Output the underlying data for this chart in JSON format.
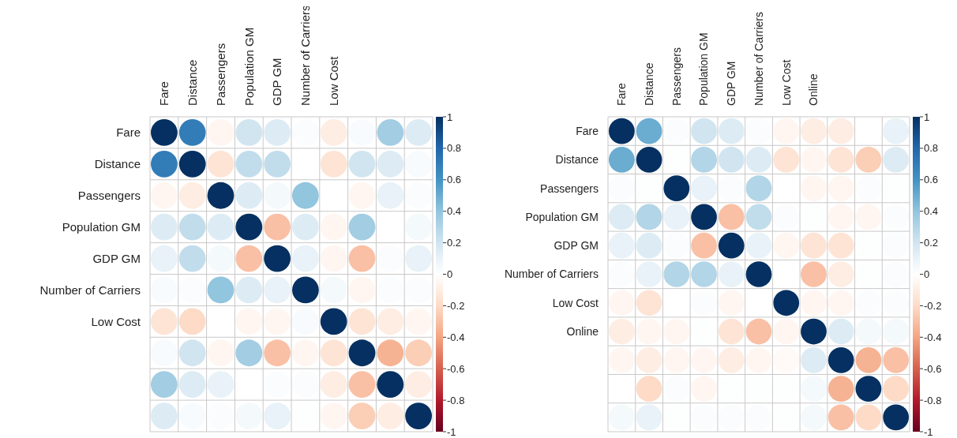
{
  "chart_data": [
    {
      "type": "heatmap",
      "grid": true,
      "clim": [
        -1,
        1
      ],
      "cticks": [
        -1,
        -0.8,
        -0.6,
        -0.4,
        -0.2,
        0,
        0.2,
        0.4,
        0.6,
        0.8,
        1
      ],
      "categories": [
        "Fare",
        "Distance",
        "Passengers",
        "Population GM",
        "GDP GM",
        "Number of Carriers",
        "Low Cost",
        null,
        null,
        null
      ],
      "y_categories": [
        "Fare",
        "Distance",
        "Passengers",
        "Population GM",
        "GDP GM",
        "Number of Carriers",
        "Low Cost",
        null,
        null,
        null
      ],
      "cells": [
        [
          1,
          0.7,
          -0.05,
          0.2,
          0.15,
          0.02,
          -0.1,
          0.03,
          0.35,
          0.15
        ],
        [
          0.7,
          1,
          -0.15,
          0.25,
          0.25,
          0,
          -0.15,
          0.2,
          0.15,
          0.03
        ],
        [
          -0.05,
          -0.1,
          1,
          0.15,
          0.05,
          0.4,
          0,
          -0.05,
          0.1,
          0.02
        ],
        [
          0.15,
          0.25,
          0.15,
          1,
          -0.3,
          0.15,
          -0.05,
          0.35,
          0,
          0.05
        ],
        [
          0.1,
          0.25,
          0.05,
          -0.3,
          1,
          0.1,
          -0.05,
          -0.3,
          0.02,
          0.1
        ],
        [
          0.03,
          0.02,
          0.4,
          0.15,
          0.1,
          1,
          0.05,
          -0.05,
          0.02,
          0.02
        ],
        [
          -0.15,
          -0.2,
          0,
          -0.05,
          -0.05,
          0.03,
          1,
          -0.15,
          -0.1,
          -0.05
        ],
        [
          0.03,
          0.2,
          -0.05,
          0.35,
          -0.3,
          -0.05,
          -0.15,
          1,
          -0.35,
          -0.25
        ],
        [
          0.35,
          0.15,
          0.1,
          0,
          0.02,
          0.02,
          -0.1,
          -0.3,
          1,
          -0.1
        ],
        [
          0.15,
          0.03,
          0.02,
          0.05,
          0.1,
          0.01,
          -0.05,
          -0.25,
          -0.1,
          1
        ]
      ]
    },
    {
      "type": "heatmap",
      "grid": true,
      "clim": [
        -1,
        1
      ],
      "cticks": [
        -1,
        -0.8,
        -0.6,
        -0.4,
        -0.2,
        0,
        0.2,
        0.4,
        0.6,
        0.8,
        1
      ],
      "categories": [
        "Fare",
        "Distance",
        "Passengers",
        "Population GM",
        "GDP GM",
        "Number of Carriers",
        "Low Cost",
        "Online",
        null,
        null,
        null
      ],
      "y_categories": [
        "Fare",
        "Distance",
        "Passengers",
        "Population GM",
        "GDP GM",
        "Number of Carriers",
        "Low Cost",
        "Online",
        null,
        null,
        null
      ],
      "cells": [
        [
          1,
          0.5,
          0.02,
          0.2,
          0.15,
          0.02,
          -0.05,
          -0.1,
          -0.1,
          0,
          0.1
        ],
        [
          0.5,
          1,
          0.01,
          0.3,
          0.2,
          0.15,
          -0.15,
          -0.05,
          -0.15,
          -0.25,
          0.15
        ],
        [
          0.02,
          0.01,
          1,
          0.1,
          0.02,
          0.3,
          0,
          -0.05,
          -0.05,
          0.02,
          0.01
        ],
        [
          0.15,
          0.3,
          0.1,
          1,
          -0.3,
          0.25,
          0.02,
          0.01,
          -0.05,
          -0.05,
          0.02
        ],
        [
          0.1,
          0.15,
          0.02,
          -0.3,
          1,
          0.1,
          -0.05,
          -0.15,
          -0.15,
          0.01,
          0.02
        ],
        [
          0.02,
          0.1,
          0.3,
          0.3,
          0.1,
          1,
          0,
          -0.3,
          -0.1,
          0.01,
          0.02
        ],
        [
          -0.05,
          -0.15,
          0,
          0.02,
          -0.05,
          0,
          1,
          -0.05,
          -0.05,
          0.02,
          0.02
        ],
        [
          -0.1,
          -0.05,
          -0.05,
          0.01,
          -0.15,
          -0.3,
          -0.05,
          1,
          0.15,
          0.05,
          0.05
        ],
        [
          -0.05,
          -0.1,
          -0.05,
          -0.05,
          -0.1,
          -0.05,
          -0.03,
          0.15,
          1,
          -0.35,
          -0.3
        ],
        [
          0,
          -0.2,
          0.02,
          -0.05,
          0.01,
          0.01,
          0.01,
          0.05,
          -0.35,
          1,
          -0.2
        ],
        [
          0.05,
          0.1,
          0.01,
          0.02,
          0.02,
          0.02,
          0.01,
          0.05,
          -0.3,
          -0.2,
          1
        ]
      ]
    }
  ]
}
